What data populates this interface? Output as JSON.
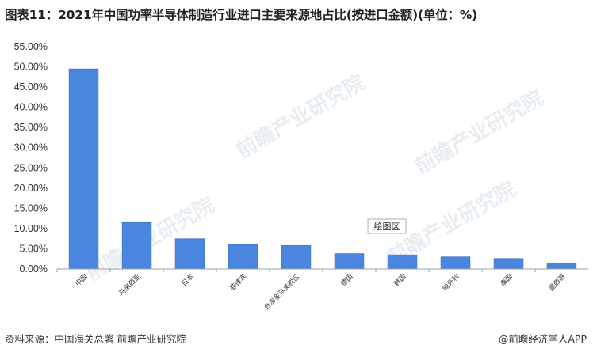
{
  "title": "图表11：2021年中国功率半导体制造行业进口主要来源地占比(按进口金额)(单位：%)",
  "source": "资料来源：中国海关总署 前瞻产业研究院",
  "credit": "@前瞻经济学人APP",
  "watermark": "前瞻产业研究院",
  "plot_area_label": "绘图区",
  "colors": {
    "bar": "#4a86e0",
    "axis": "#9aa0a6"
  },
  "chart_data": {
    "type": "bar",
    "categories": [
      "中国",
      "马来西亚",
      "日本",
      "菲律宾",
      "台澎金马关税区",
      "德国",
      "韩国",
      "匈牙利",
      "泰国",
      "墨西哥"
    ],
    "values": [
      49.5,
      11.5,
      7.5,
      6.0,
      5.8,
      3.8,
      3.5,
      3.0,
      2.6,
      1.4
    ],
    "ylim": [
      0,
      55
    ],
    "yticks": [
      "0.00%",
      "5.00%",
      "10.00%",
      "15.00%",
      "20.00%",
      "25.00%",
      "30.00%",
      "35.00%",
      "40.00%",
      "45.00%",
      "50.00%",
      "55.00%"
    ],
    "ytick_values": [
      0,
      5,
      10,
      15,
      20,
      25,
      30,
      35,
      40,
      45,
      50,
      55
    ],
    "grid": false
  }
}
